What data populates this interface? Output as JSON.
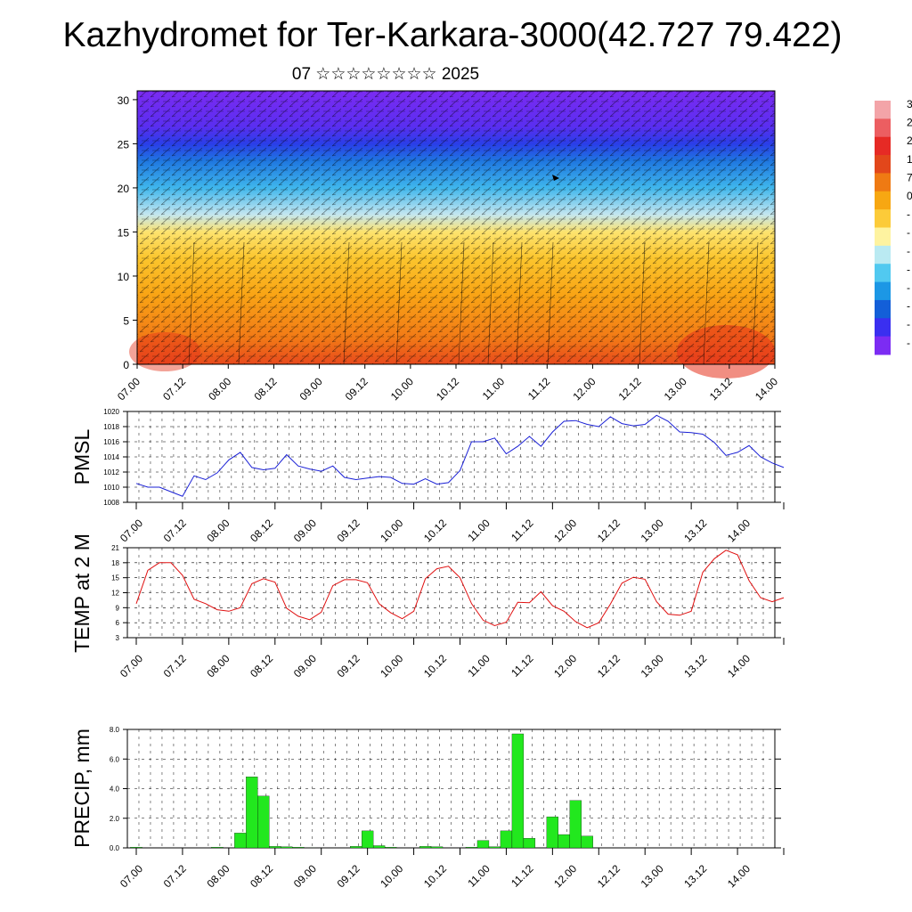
{
  "title": "Kazhydromet for Ter-Karkara-3000(42.727 79.422)",
  "subtitle": "07 ☆☆☆☆☆☆☆☆ 2025",
  "time_labels": [
    "07.00",
    "07.12",
    "08.00",
    "08.12",
    "09.00",
    "09.12",
    "10.00",
    "10.12",
    "11.00",
    "11.12",
    "12.00",
    "12.12",
    "13.00",
    "13.12",
    "14.00"
  ],
  "colorbar": {
    "labels": [
      "3",
      "2",
      "2",
      "1",
      "7",
      "0",
      "-",
      "-",
      "-",
      "-",
      "-",
      "-",
      "-",
      "-"
    ],
    "colors": [
      "#f3a4a8",
      "#ec5e61",
      "#e62a25",
      "#e2471b",
      "#ef7a13",
      "#f7a712",
      "#fccb39",
      "#fef3a0",
      "#baeaf2",
      "#51c9f0",
      "#1c97e5",
      "#135fd8",
      "#3a2ff0",
      "#7c2cf3"
    ]
  },
  "chart_data": [
    {
      "type": "heatmap",
      "name": "vertical-profile",
      "x": [
        "07.00",
        "07.12",
        "08.00",
        "08.12",
        "09.00",
        "09.12",
        "10.00",
        "10.12",
        "11.00",
        "11.12",
        "12.00",
        "12.12",
        "13.00",
        "13.12",
        "14.00"
      ],
      "ylim": [
        0,
        31
      ],
      "yticks": [
        0,
        5,
        10,
        15,
        20,
        25,
        30
      ],
      "color_stops": [
        {
          "y": 0,
          "color": "#e84a1c"
        },
        {
          "y": 3,
          "color": "#f27a16"
        },
        {
          "y": 8,
          "color": "#f9a515"
        },
        {
          "y": 12,
          "color": "#fbc52d"
        },
        {
          "y": 15,
          "color": "#fde36e"
        },
        {
          "y": 17,
          "color": "#c3e6f0"
        },
        {
          "y": 20,
          "color": "#3fb6ec"
        },
        {
          "y": 23,
          "color": "#1f78e0"
        },
        {
          "y": 25,
          "color": "#2a3ee8"
        },
        {
          "y": 27,
          "color": "#5a2ef0"
        },
        {
          "y": 31,
          "color": "#7b2bf2"
        }
      ]
    },
    {
      "type": "line",
      "ylabel": "PMSL",
      "ylim": [
        1008,
        1020
      ],
      "yticks": [
        1008,
        1010,
        1012,
        1014,
        1016,
        1018,
        1020
      ],
      "x_start": "07.00",
      "step_hours": 3,
      "color": "#1a20d6",
      "values": [
        1010.5,
        1010.0,
        1010.0,
        1009.4,
        1008.8,
        1011.5,
        1011.0,
        1011.9,
        1013.6,
        1014.6,
        1012.6,
        1012.3,
        1012.5,
        1014.3,
        1012.8,
        1012.4,
        1012.1,
        1012.8,
        1011.3,
        1011.0,
        1011.2,
        1011.4,
        1011.3,
        1010.5,
        1010.4,
        1011.1,
        1010.4,
        1010.6,
        1012.2,
        1016.0,
        1016.0,
        1016.5,
        1014.4,
        1015.4,
        1016.7,
        1015.4,
        1017.3,
        1018.7,
        1018.8,
        1018.3,
        1018.0,
        1019.3,
        1018.4,
        1018.1,
        1018.3,
        1019.5,
        1018.7,
        1017.3,
        1017.2,
        1017.0,
        1015.9,
        1014.2,
        1014.6,
        1015.5,
        1014.0,
        1013.2,
        1012.6
      ]
    },
    {
      "type": "line",
      "ylabel": "TEMP at 2 M",
      "ylim": [
        3,
        21
      ],
      "yticks": [
        3,
        6,
        9,
        12,
        15,
        18,
        21
      ],
      "x_start": "07.00",
      "step_hours": 3,
      "color": "#e01010",
      "values": [
        9.8,
        16.5,
        18.0,
        18.0,
        15.5,
        10.7,
        9.8,
        8.6,
        8.3,
        9.0,
        13.8,
        14.8,
        14.1,
        8.9,
        7.3,
        6.6,
        8.1,
        13.4,
        14.6,
        14.6,
        14.0,
        9.8,
        8.0,
        6.8,
        8.3,
        14.8,
        16.8,
        17.3,
        15.0,
        9.8,
        6.5,
        5.4,
        6.1,
        10.1,
        10.0,
        12.2,
        9.4,
        8.3,
        6.2,
        5.0,
        6.0,
        9.7,
        13.9,
        15.1,
        14.7,
        10.2,
        7.7,
        7.5,
        8.3,
        16.1,
        18.8,
        20.5,
        19.6,
        14.4,
        11.0,
        10.2,
        11.0
      ]
    },
    {
      "type": "bar",
      "ylabel": "PRECIP, mm",
      "ylim": [
        0,
        8
      ],
      "yticks": [
        "0.0",
        "2.0",
        "4.0",
        "6.0",
        "8.0"
      ],
      "x_start": "07.00",
      "step_hours": 3,
      "color": "#22e81e",
      "values": [
        0.05,
        0.0,
        0.0,
        0.0,
        0.0,
        0.0,
        0.0,
        0.05,
        0.0,
        1.0,
        4.8,
        3.5,
        0.1,
        0.08,
        0.05,
        0.02,
        0.0,
        0.0,
        0.0,
        0.1,
        1.15,
        0.15,
        0.05,
        0.0,
        0.0,
        0.1,
        0.08,
        0.0,
        0.0,
        0.05,
        0.5,
        0.08,
        1.15,
        7.7,
        0.65,
        0.0,
        2.1,
        0.9,
        3.2,
        0.8,
        0.0,
        0.0,
        0.0,
        0.0,
        0.0,
        0.0,
        0.0,
        0.0,
        0.0,
        0.0,
        0.0,
        0.0,
        0.0,
        0.0,
        0.0,
        0.0,
        0.0
      ]
    }
  ]
}
